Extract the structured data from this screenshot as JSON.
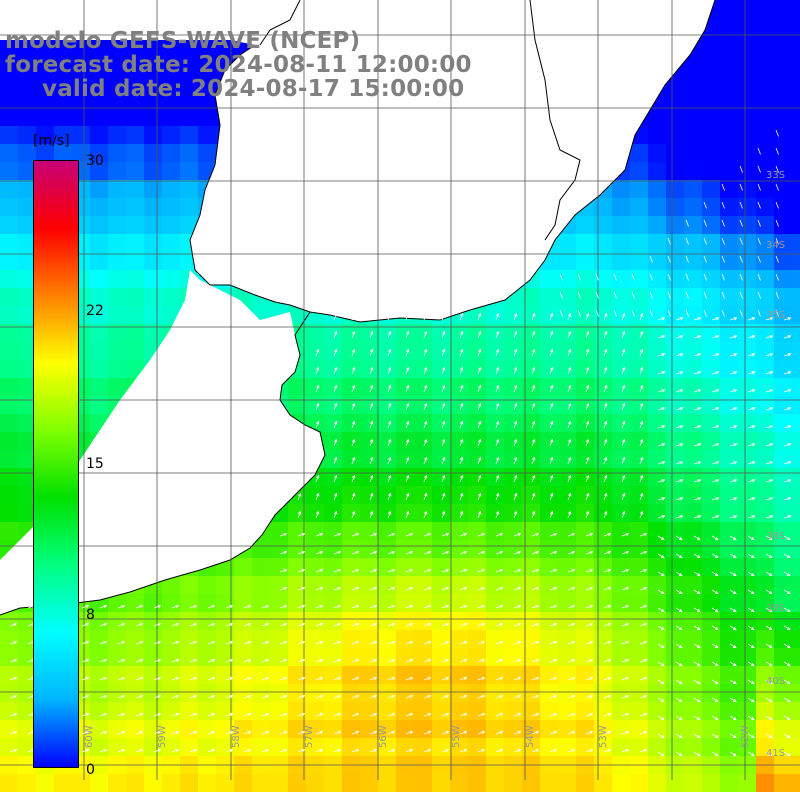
{
  "titles": {
    "model": "modelo GEFS-WAVE (NCEP)",
    "forecast": "forecast date: 2024-08-11 12:00:00",
    "valid": "valid date: 2024-08-17 15:00:00"
  },
  "colorbar": {
    "unit": "[m/s]",
    "min": 0,
    "max": 30,
    "ticks": [
      "0",
      "8",
      "15",
      "22",
      "30"
    ],
    "colors": [
      "#0000ff",
      "#00b4ff",
      "#00ffff",
      "#00ff80",
      "#00e000",
      "#80ff00",
      "#ffff00",
      "#ff8000",
      "#ff0000",
      "#c80078"
    ]
  },
  "lat_labels": [
    "33S",
    "34S",
    "35S",
    "38S",
    "39S",
    "40S",
    "41S"
  ],
  "lon_labels": [
    "60W",
    "59W",
    "58W",
    "57W",
    "56W",
    "55W",
    "54W",
    "53W",
    "52W"
  ],
  "land_color": "#ffffff",
  "coast_color": "#000000",
  "grid_color": "#555555"
}
